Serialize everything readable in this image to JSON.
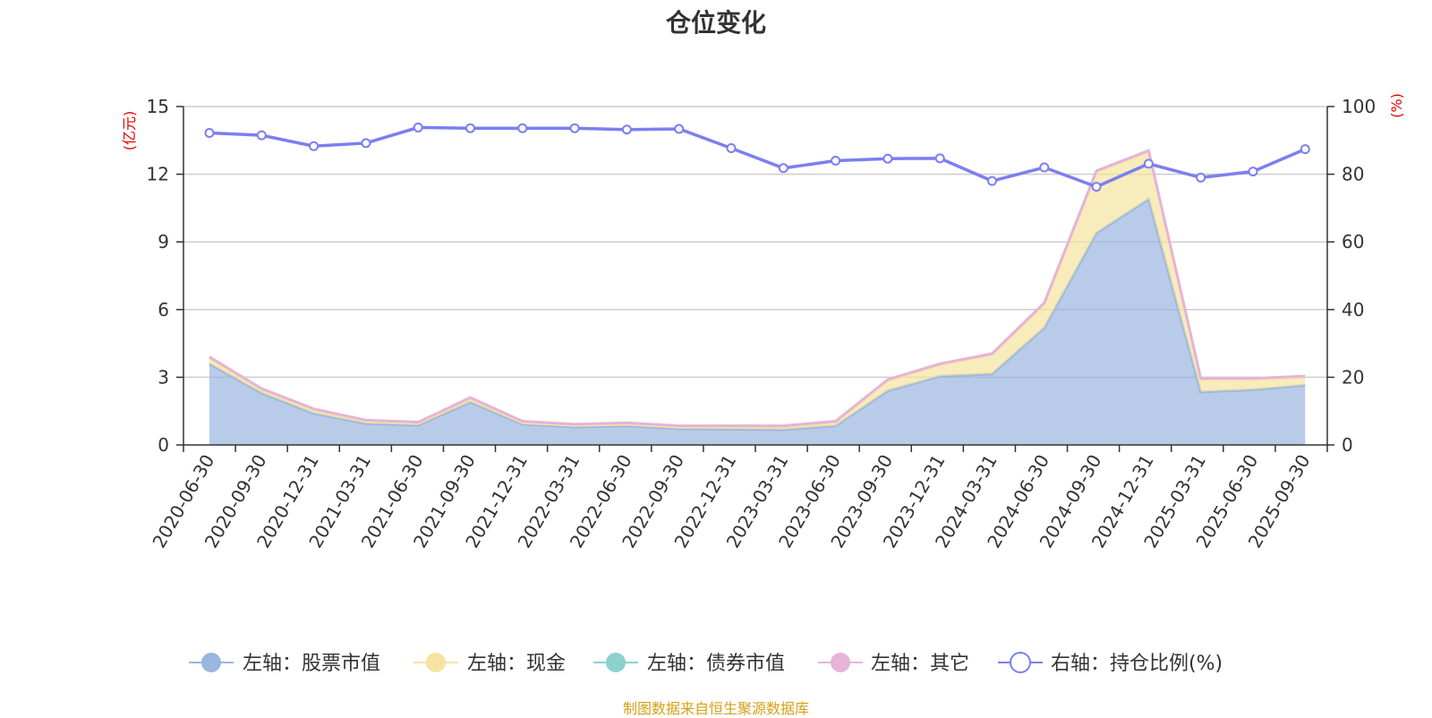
{
  "chart_data": {
    "type": "area",
    "title": "仓位变化",
    "x": [
      "2020-06-30",
      "2020-09-30",
      "2020-12-31",
      "2021-03-31",
      "2021-06-30",
      "2021-09-30",
      "2021-12-31",
      "2022-03-31",
      "2022-06-30",
      "2022-09-30",
      "2022-12-31",
      "2023-03-31",
      "2023-06-30",
      "2023-09-30",
      "2023-12-31",
      "2024-03-31",
      "2024-06-30",
      "2024-09-30",
      "2024-12-31",
      "2025-03-31",
      "2025-06-30",
      "2025-09-30"
    ],
    "left_axis": {
      "unit_label": "(亿元)",
      "ylim": [
        0,
        15
      ],
      "ticks": [
        0,
        3,
        6,
        9,
        12,
        15
      ]
    },
    "right_axis": {
      "unit_label": "(%)",
      "ylim": [
        0,
        100
      ],
      "ticks": [
        0,
        20,
        40,
        60,
        80,
        100
      ]
    },
    "grid": true,
    "legend_position": "bottom-center",
    "series": [
      {
        "name": "左轴：股票市值",
        "axis": "left",
        "kind": "stacked-area",
        "color": "#9ab5e0",
        "values": [
          3.6,
          2.3,
          1.4,
          0.95,
          0.88,
          1.9,
          0.92,
          0.8,
          0.85,
          0.72,
          0.7,
          0.68,
          0.85,
          2.4,
          3.05,
          3.15,
          5.2,
          9.4,
          10.9,
          2.35,
          2.45,
          2.65
        ]
      },
      {
        "name": "左轴：现金",
        "axis": "left",
        "kind": "stacked-area",
        "color": "#f5e4a0",
        "values": [
          0.25,
          0.15,
          0.15,
          0.1,
          0.08,
          0.15,
          0.08,
          0.07,
          0.08,
          0.08,
          0.1,
          0.12,
          0.15,
          0.45,
          0.5,
          0.85,
          1.05,
          2.7,
          2.1,
          0.55,
          0.45,
          0.35
        ]
      },
      {
        "name": "左轴：债券市值",
        "axis": "left",
        "kind": "stacked-area",
        "color": "#8cd0d0",
        "values": [
          0,
          0,
          0,
          0,
          0,
          0,
          0,
          0,
          0,
          0,
          0,
          0,
          0,
          0,
          0,
          0,
          0,
          0,
          0,
          0,
          0,
          0
        ]
      },
      {
        "name": "左轴：其它",
        "axis": "left",
        "kind": "stacked-area",
        "color": "#e6b3d9",
        "values": [
          0.05,
          0.05,
          0.05,
          0.05,
          0.05,
          0.05,
          0.05,
          0.05,
          0.05,
          0.05,
          0.05,
          0.05,
          0.05,
          0.05,
          0.05,
          0.05,
          0.05,
          0.05,
          0.05,
          0.05,
          0.05,
          0.05
        ]
      },
      {
        "name": "右轴：持仓比例(%)",
        "axis": "right",
        "kind": "line",
        "color": "#7b7ff0",
        "values": [
          92.2,
          91.5,
          88.3,
          89.2,
          93.8,
          93.6,
          93.6,
          93.6,
          93.2,
          93.4,
          87.7,
          81.8,
          84.0,
          84.6,
          84.7,
          78.0,
          82.0,
          76.3,
          83.1,
          79.0,
          80.8,
          87.4
        ]
      }
    ]
  },
  "footer": {
    "source": "制图数据来自恒生聚源数据库"
  }
}
